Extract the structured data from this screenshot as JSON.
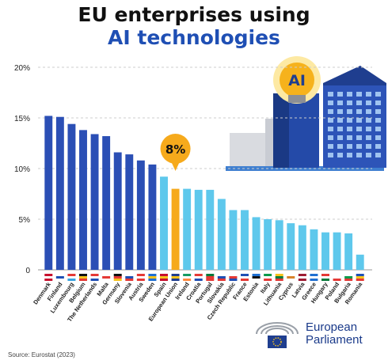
{
  "title_line1": "EU enterprises using",
  "title_line2": "AI technologies",
  "source": "Source: Eurostat (2023)",
  "org": {
    "line1": "European",
    "line2": "Parliament"
  },
  "ai_badge": "AI",
  "colors": {
    "high": "#2b4fb5",
    "eu": "#f6aa1c",
    "low": "#5ec8ec",
    "grid": "#cccccc",
    "title_blue": "#1f4fb4"
  },
  "chart_data": {
    "type": "bar",
    "ylim": [
      0,
      20
    ],
    "ytick_labels": [
      "0",
      "5%",
      "10%",
      "15%",
      "20%"
    ],
    "ytick_values": [
      0,
      5,
      10,
      15,
      20
    ],
    "highlight_label": "8%",
    "categories": [
      "Denmark",
      "Finland",
      "Luxembourg",
      "Belgium",
      "The Netherlands",
      "Malta",
      "Germany",
      "Slovenia",
      "Austria",
      "Sweden",
      "Spain",
      "European Union",
      "Ireland",
      "Croatia",
      "Portugal",
      "Slovakia",
      "Czech Republic",
      "France",
      "Estonia",
      "Italy",
      "Lithuania",
      "Cyprus",
      "Latvia",
      "Greece",
      "Hungary",
      "Poland",
      "Bulgaria",
      "Romania"
    ],
    "values": [
      15.2,
      15.1,
      14.4,
      13.8,
      13.4,
      13.2,
      11.6,
      11.4,
      10.8,
      10.4,
      9.2,
      8.0,
      8.0,
      7.9,
      7.9,
      7.0,
      5.9,
      5.9,
      5.2,
      5.0,
      4.9,
      4.6,
      4.4,
      4.0,
      3.7,
      3.7,
      3.6,
      1.5
    ],
    "bar_groups": [
      "high",
      "high",
      "high",
      "high",
      "high",
      "high",
      "high",
      "high",
      "high",
      "high",
      "low",
      "eu",
      "low",
      "low",
      "low",
      "low",
      "low",
      "low",
      "low",
      "low",
      "low",
      "low",
      "low",
      "low",
      "low",
      "low",
      "low",
      "low"
    ]
  }
}
